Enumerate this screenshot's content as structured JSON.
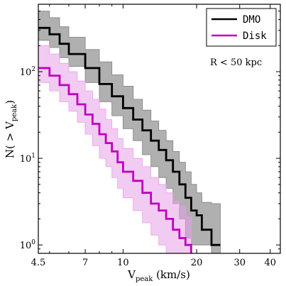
{
  "chart_data": {
    "type": "line",
    "xlabel": "V",
    "xlabel_sub": "peak",
    "xlabel_units": " (km/s)",
    "ylabel_prefix": "N( > V",
    "ylabel_sub": "peak",
    "ylabel_suffix": ")",
    "xscale": "log",
    "yscale": "log",
    "xlim": [
      4.5,
      44
    ],
    "ylim": [
      0.8,
      600
    ],
    "xticks": [
      {
        "value": 4.5,
        "label": "4.5"
      },
      {
        "value": 7,
        "label": "7"
      },
      {
        "value": 10,
        "label": "10"
      },
      {
        "value": 20,
        "label": "20"
      },
      {
        "value": 30,
        "label": "30"
      },
      {
        "value": 40,
        "label": "40"
      }
    ],
    "yticks": [
      {
        "value": 1,
        "label": "10",
        "exp": "0"
      },
      {
        "value": 10,
        "label": "10",
        "exp": "1"
      },
      {
        "value": 100,
        "label": "10",
        "exp": "2"
      }
    ],
    "annotation": "R < 50 kpc",
    "legend_position": "top-right",
    "series": [
      {
        "name": "DMO",
        "color": "#000000",
        "band_color": "#808080",
        "x": [
          4.5,
          5.0,
          5.5,
          6.0,
          7.0,
          8.0,
          9.0,
          10.0,
          11.0,
          12.0,
          13.0,
          14.0,
          15.0,
          16.0,
          17.0,
          18.0,
          19.0,
          20.0,
          21.0,
          23.0,
          25.0
        ],
        "y": [
          320,
          270,
          210,
          160,
          110,
          72,
          52,
          38,
          28,
          21,
          16,
          12.5,
          9.5,
          7,
          5,
          3.5,
          2.5,
          2.2,
          1.5,
          1.0,
          1.0
        ],
        "upper": [
          500,
          420,
          330,
          250,
          180,
          130,
          92,
          68,
          48,
          36,
          27,
          21,
          16,
          12,
          9,
          7,
          5,
          4,
          3.1,
          3.0,
          2.7
        ],
        "lower": [
          230,
          190,
          145,
          115,
          75,
          45,
          31,
          22,
          16,
          11,
          8,
          6,
          4.5,
          3,
          2,
          1.2,
          1.0,
          1.0,
          1.0,
          0.8,
          0.8
        ]
      },
      {
        "name": "Disk",
        "color": "#c000c0",
        "band_color": "#e8a0e8",
        "x": [
          4.5,
          5.0,
          5.5,
          6.0,
          6.5,
          7.0,
          7.5,
          8.0,
          8.5,
          9.0,
          9.5,
          10.0,
          11.0,
          12.0,
          13.0,
          14.0,
          15.0,
          16.0,
          17.0,
          18.0,
          19.0
        ],
        "y": [
          110,
          90,
          70,
          55,
          42,
          32,
          25,
          19,
          15,
          12,
          9,
          7,
          5.5,
          4,
          3,
          2.5,
          2,
          1.5,
          1.2,
          1.0,
          0.8
        ],
        "upper": [
          200,
          160,
          125,
          100,
          78,
          60,
          48,
          37,
          28,
          22,
          17,
          13,
          10,
          8,
          6,
          5,
          4,
          3.2,
          2.8,
          2.1,
          1.8
        ],
        "lower": [
          75,
          60,
          45,
          35,
          26,
          19,
          14,
          10,
          8,
          6,
          4.5,
          3.5,
          2.5,
          1.8,
          1.3,
          1.0,
          0.8,
          0.8,
          0.8,
          0.8,
          0.8
        ]
      }
    ]
  }
}
